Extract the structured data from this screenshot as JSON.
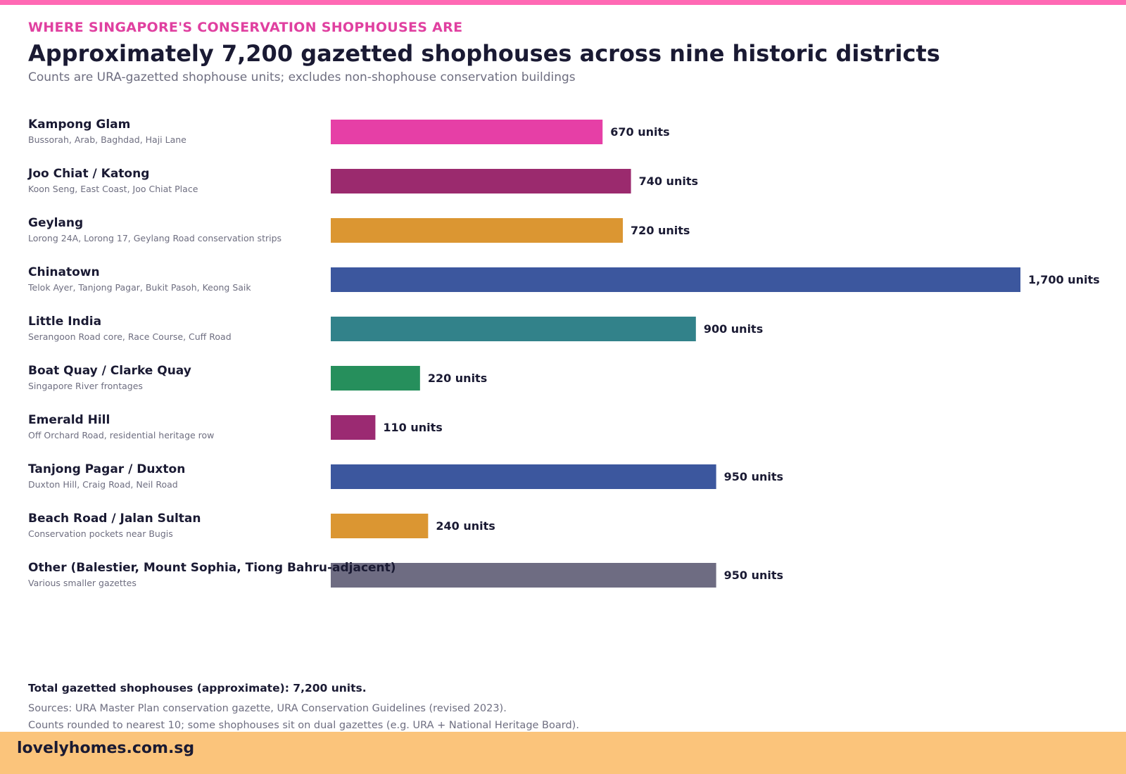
{
  "header": {
    "eyebrow": "WHERE SINGAPORE'S CONSERVATION SHOPHOUSES ARE",
    "title": "Approximately 7,200 gazetted shophouses across nine historic districts",
    "subtitle": "Counts are URA-gazetted shophouse units; excludes non-shophouse conservation buildings"
  },
  "chart_data": {
    "type": "bar",
    "orientation": "horizontal",
    "title": "Approximately 7,200 gazetted shophouses across nine historic districts",
    "value_suffix": " units",
    "xlim": [
      0,
      1700
    ],
    "grid": false,
    "legend": "none",
    "categories": [
      "Kampong Glam",
      "Joo Chiat / Katong",
      "Geylang",
      "Chinatown",
      "Little India",
      "Boat Quay / Clarke Quay",
      "Emerald Hill",
      "Tanjong Pagar / Duxton",
      "Beach Road / Jalan Sultan",
      "Other (Balestier, Mount Sophia, Tiong Bahru-adjacent)"
    ],
    "subtitles": [
      "Bussorah, Arab, Baghdad, Haji Lane",
      "Koon Seng, East Coast, Joo Chiat Place",
      "Lorong 24A, Lorong 17, Geylang Road conservation strips",
      "Telok Ayer, Tanjong Pagar, Bukit Pasoh, Keong Saik",
      "Serangoon Road core, Race Course, Cuff Road",
      "Singapore River frontages",
      "Off Orchard Road, residential heritage row",
      "Duxton Hill, Craig Road, Neil Road",
      "Conservation pockets near Bugis",
      "Various smaller gazettes"
    ],
    "values": [
      670,
      740,
      720,
      1700,
      900,
      220,
      110,
      950,
      240,
      950
    ],
    "value_labels": [
      "670 units",
      "740 units",
      "720 units",
      "1,700 units",
      "900 units",
      "220 units",
      "110 units",
      "950 units",
      "240 units",
      "950 units"
    ],
    "colors": [
      "#e63fa6",
      "#9b2a6e",
      "#db9632",
      "#3c579e",
      "#32828a",
      "#268f5c",
      "#9b2a72",
      "#3c579e",
      "#db9632",
      "#6e6c82"
    ]
  },
  "footer": {
    "total": "Total gazetted shophouses (approximate): 7,200 units.",
    "source_line1": "Sources: URA Master Plan conservation gazette, URA Conservation Guidelines (revised 2023).",
    "source_line2": "Counts rounded to nearest 10; some shophouses sit on dual gazettes (e.g. URA + National Heritage Board).",
    "brand": "lovelyhomes.com.sg"
  },
  "colors": {
    "accent_pink": "#ff69b4",
    "eyebrow": "#e040a0",
    "footer_band": "#fbc47b",
    "text_dark": "#1a1a33",
    "text_muted": "#6e6e80"
  }
}
